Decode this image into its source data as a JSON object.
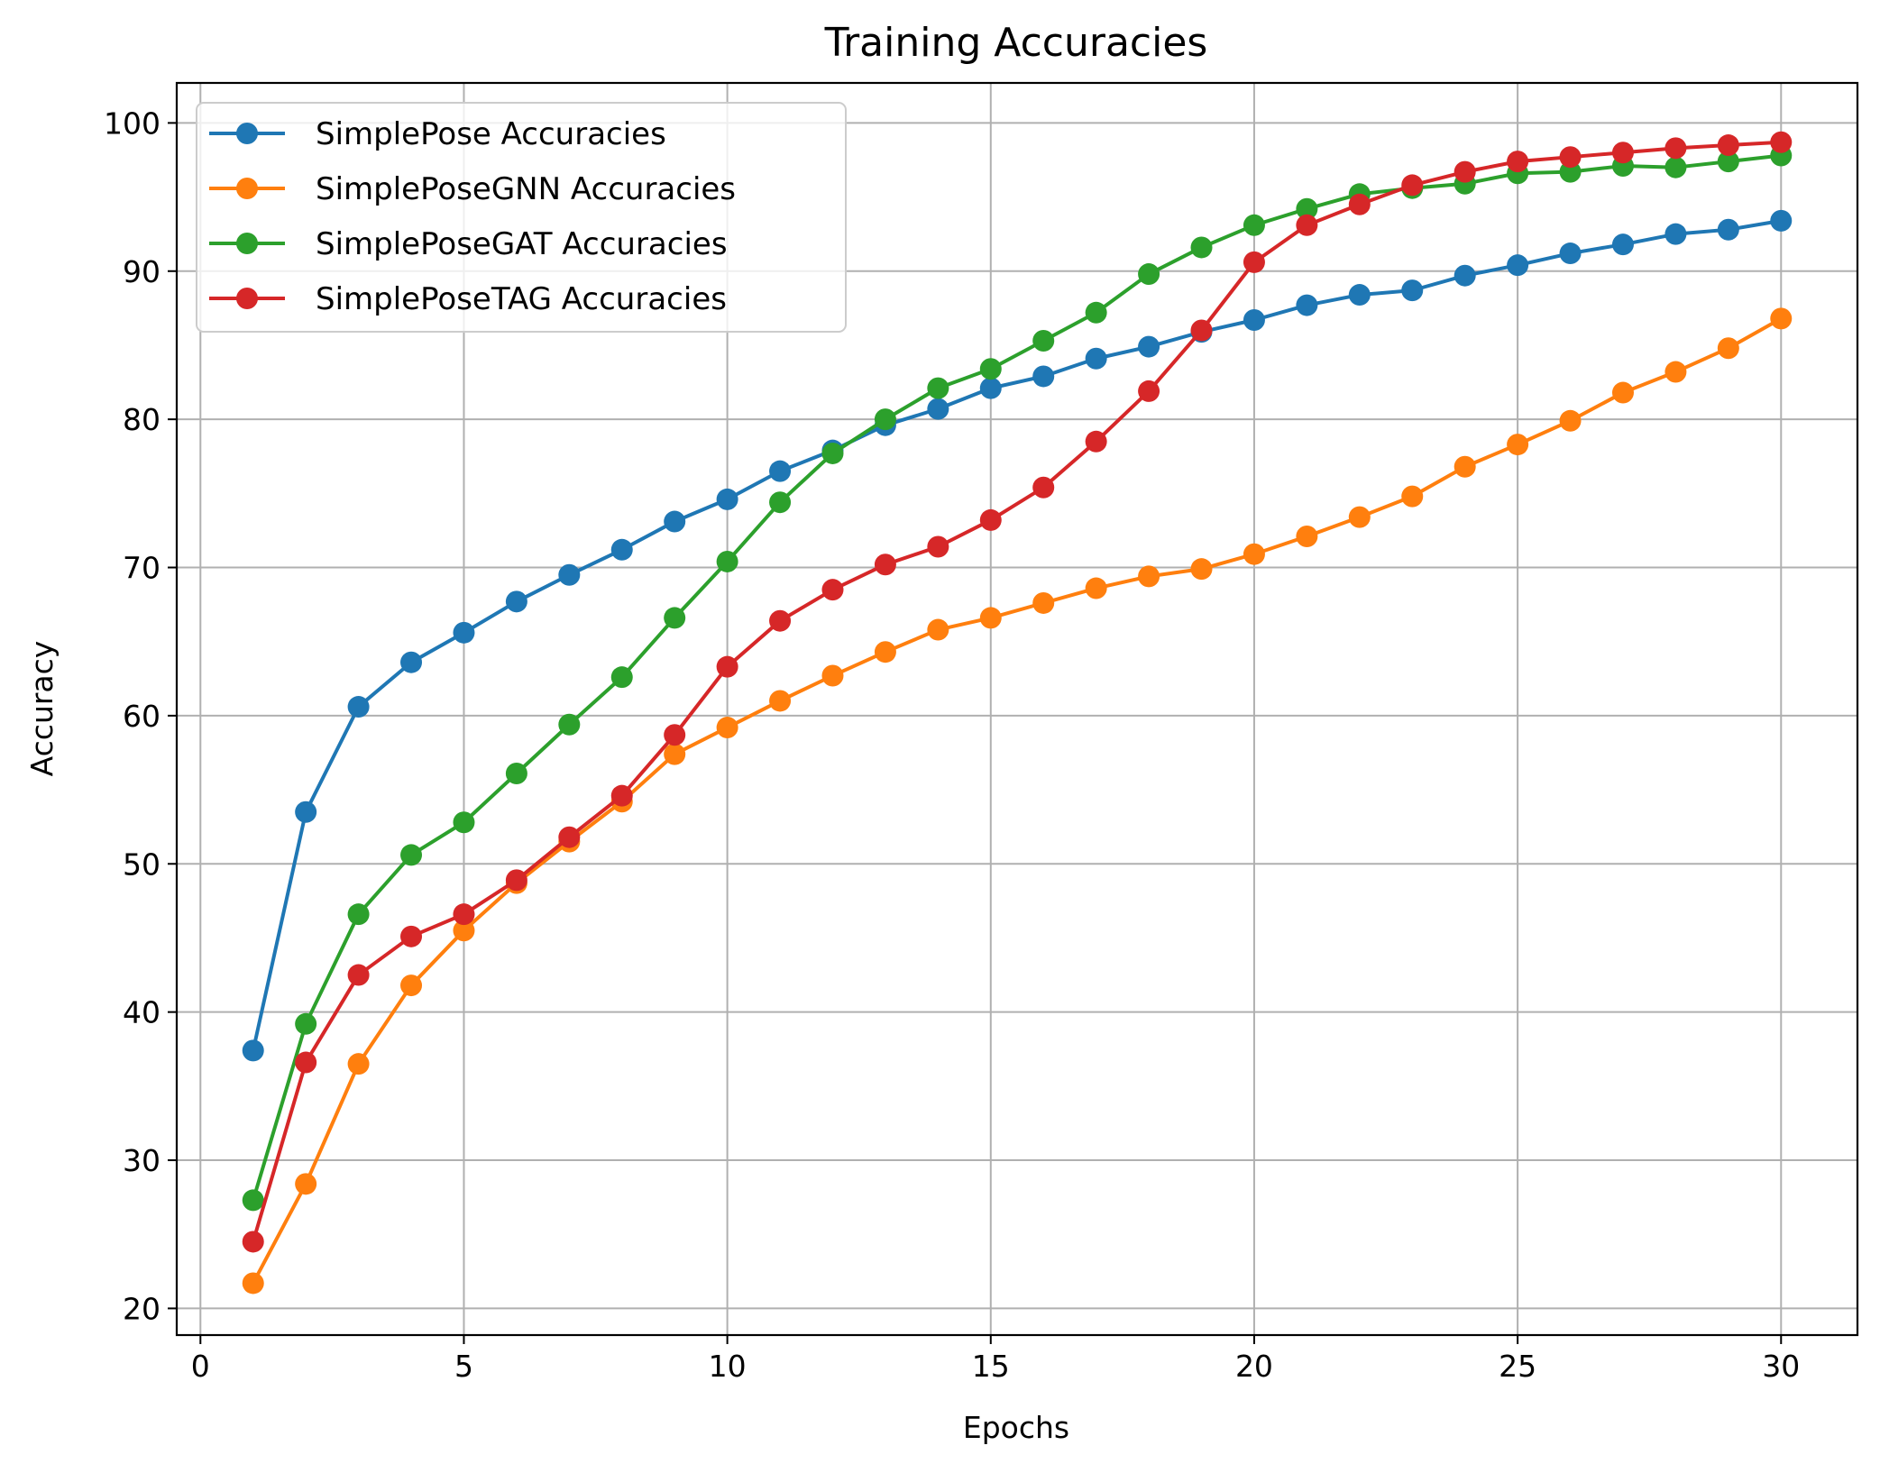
{
  "chart_data": {
    "type": "line",
    "title": "Training Accuracies",
    "xlabel": "Epochs",
    "ylabel": "Accuracy",
    "xlim": [
      -0.45,
      31.45
    ],
    "ylim": [
      18.2,
      102.7
    ],
    "xticks": [
      0,
      5,
      10,
      15,
      20,
      25,
      30
    ],
    "yticks": [
      20,
      30,
      40,
      50,
      60,
      70,
      80,
      90,
      100
    ],
    "grid": true,
    "legend_position": "upper left",
    "x": [
      1,
      2,
      3,
      4,
      5,
      6,
      7,
      8,
      9,
      10,
      11,
      12,
      13,
      14,
      15,
      16,
      17,
      18,
      19,
      20,
      21,
      22,
      23,
      24,
      25,
      26,
      27,
      28,
      29,
      30
    ],
    "series": [
      {
        "name": "SimplePose Accuracies",
        "color": "#1f77b4",
        "values": [
          37.4,
          53.5,
          60.6,
          63.6,
          65.6,
          67.7,
          69.5,
          71.2,
          73.1,
          74.6,
          76.5,
          77.9,
          79.6,
          80.7,
          82.1,
          82.9,
          84.1,
          84.9,
          85.9,
          86.7,
          87.7,
          88.4,
          88.7,
          89.7,
          90.4,
          91.2,
          91.8,
          92.5,
          92.8,
          93.4
        ]
      },
      {
        "name": "SimplePoseGNN Accuracies",
        "color": "#ff7f0e",
        "values": [
          21.7,
          28.4,
          36.5,
          41.8,
          45.5,
          48.7,
          51.5,
          54.2,
          57.4,
          59.2,
          61.0,
          62.7,
          64.3,
          65.8,
          66.6,
          67.6,
          68.6,
          69.4,
          69.9,
          70.9,
          72.1,
          73.4,
          74.8,
          76.8,
          78.3,
          79.9,
          81.8,
          83.2,
          84.8,
          86.8
        ]
      },
      {
        "name": "SimplePoseGAT Accuracies",
        "color": "#2ca02c",
        "values": [
          27.3,
          39.2,
          46.6,
          50.6,
          52.8,
          56.1,
          59.4,
          62.6,
          66.6,
          70.4,
          74.4,
          77.7,
          80.0,
          82.1,
          83.4,
          85.3,
          87.2,
          89.8,
          91.6,
          93.1,
          94.2,
          95.2,
          95.6,
          95.9,
          96.6,
          96.7,
          97.1,
          97.0,
          97.4,
          97.8
        ]
      },
      {
        "name": "SimplePoseTAG Accuracies",
        "color": "#d62728",
        "values": [
          24.5,
          36.6,
          42.5,
          45.1,
          46.6,
          48.9,
          51.8,
          54.6,
          58.7,
          63.3,
          66.4,
          68.5,
          70.2,
          71.4,
          73.2,
          75.4,
          78.5,
          81.9,
          86.0,
          90.6,
          93.1,
          94.5,
          95.8,
          96.7,
          97.4,
          97.7,
          98.0,
          98.3,
          98.5,
          98.7
        ]
      }
    ]
  }
}
